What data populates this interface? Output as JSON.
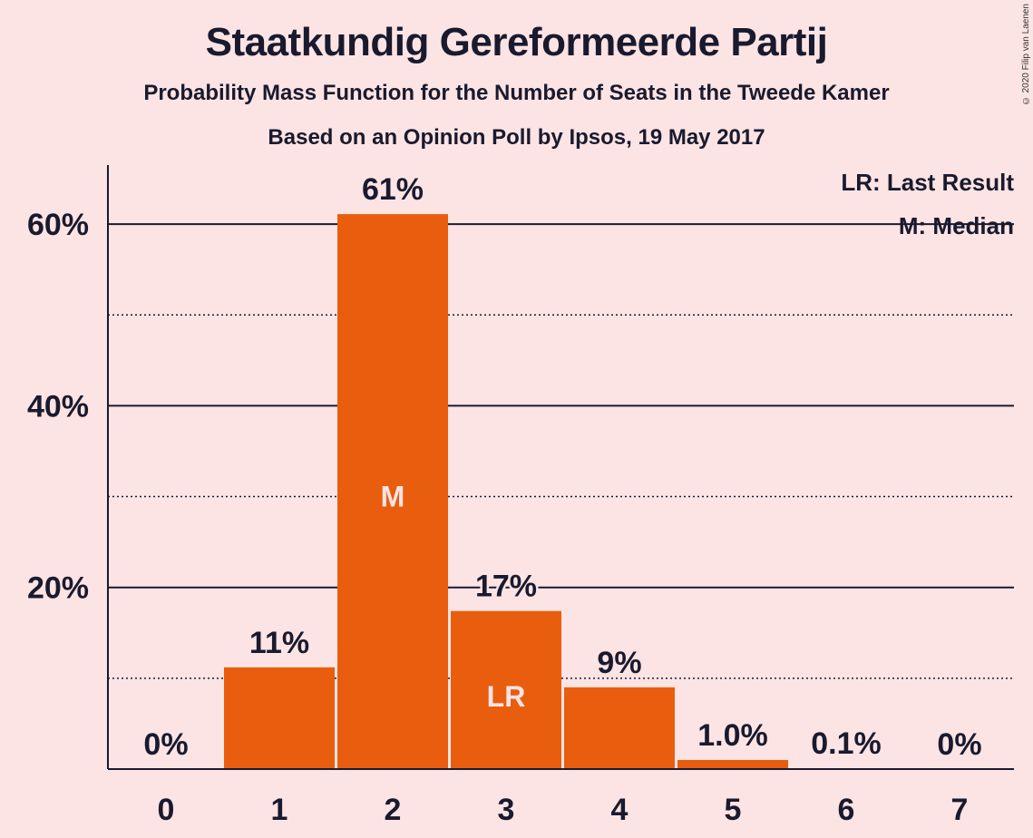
{
  "title": "Staatkundig Gereformeerde Partij",
  "subtitle": "Probability Mass Function for the Number of Seats in the Tweede Kamer",
  "source": "Based on an Opinion Poll by Ipsos, 19 May 2017",
  "copyright": "© 2020 Filip van Laenen",
  "legend": {
    "last_result": "LR: Last Result",
    "median": "M: Median",
    "placement": "top-right"
  },
  "colors": {
    "background": "#fce4e4",
    "bar": "#e85e0e",
    "text": "#1a1a2e"
  },
  "chart_data": {
    "type": "bar",
    "categories": [
      "0",
      "1",
      "2",
      "3",
      "4",
      "5",
      "6",
      "7"
    ],
    "values": [
      0,
      11.2,
      61.1,
      17.4,
      9.0,
      1.0,
      0.1,
      0
    ],
    "value_labels": [
      "0%",
      "11%",
      "61%",
      "17%",
      "9%",
      "1.0%",
      "0.1%",
      "0%"
    ],
    "bar_markers": [
      "",
      "",
      "M",
      "LR",
      "",
      "",
      "",
      ""
    ],
    "ylim": [
      0,
      66.5
    ],
    "yticks": [
      20,
      40,
      60
    ],
    "ytick_labels": [
      "20%",
      "40%",
      "60%"
    ],
    "minor_gridlines": [
      10,
      30,
      50
    ],
    "grid": true
  }
}
